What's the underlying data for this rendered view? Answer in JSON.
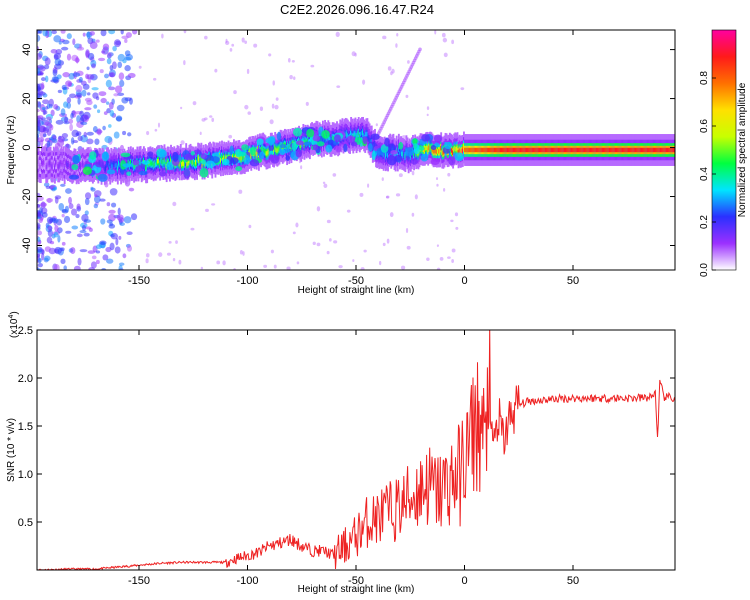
{
  "title": "C2E2.2026.096.16.47.R24",
  "colorbar": {
    "label": "Normalized spectral amplitude",
    "ticks": [
      "0.0",
      "0.2",
      "0.4",
      "0.6",
      "0.8"
    ],
    "colors": [
      "#ffffff",
      "#9b30ff",
      "#2a30ff",
      "#00e5ff",
      "#00ff40",
      "#c8ff00",
      "#ffe000",
      "#ff7000",
      "#ff1a1a",
      "#ff00a0"
    ]
  },
  "line_color": "#ee2222",
  "chart_data": [
    {
      "type": "heatmap",
      "xlabel": "Height of straight line (km)",
      "ylabel": "Frequency (Hz)",
      "xlim": [
        -197,
        97
      ],
      "ylim": [
        -50,
        48
      ],
      "xticks": [
        -150,
        -100,
        -50,
        0,
        50
      ],
      "yticks": [
        -40,
        -20,
        0,
        20,
        40
      ],
      "ridge": {
        "x": [
          -195,
          -170,
          -160,
          -150,
          -140,
          -130,
          -120,
          -110,
          -100,
          -90,
          -80,
          -70,
          -60,
          -50,
          -45,
          -40,
          -30,
          -25,
          -20,
          -10,
          0,
          10,
          20,
          40,
          60,
          80,
          94
        ],
        "freq": [
          -7,
          -7.5,
          -7.5,
          -7,
          -6.5,
          -6,
          -5.5,
          -4.5,
          -3,
          -1,
          1,
          3,
          4,
          5,
          5,
          -2,
          -2,
          -3,
          -1,
          -1,
          -1,
          -1,
          -1,
          -1,
          -1,
          -1,
          -1
        ],
        "amplitude": [
          0.1,
          0.15,
          0.3,
          0.4,
          0.45,
          0.5,
          0.55,
          0.55,
          0.55,
          0.5,
          0.45,
          0.4,
          0.35,
          0.35,
          0.3,
          0.3,
          0.3,
          0.3,
          0.55,
          0.7,
          0.8,
          0.85,
          0.9,
          0.9,
          0.9,
          0.9,
          0.9
        ]
      }
    },
    {
      "type": "line",
      "xlabel": "Height of straight line (km)",
      "ylabel": "SNR (10 * v/v)",
      "scale_label": "(x10",
      "scale_exp": "4",
      "xlim": [
        -197,
        97
      ],
      "ylim": [
        0,
        2.5
      ],
      "xticks": [
        -150,
        -100,
        -50,
        0,
        50
      ],
      "yticks": [
        0.5,
        1.0,
        1.5,
        2.0,
        2.5
      ],
      "yticklabels": [
        "0.5",
        "1.0",
        "1.5",
        "2.0",
        "2.5"
      ],
      "series": [
        {
          "x": [
            -197,
            -180,
            -170,
            -160,
            -150,
            -140,
            -130,
            -120,
            -110,
            -105,
            -100,
            -95,
            -90,
            -85,
            -80,
            -75,
            -70,
            -65,
            -60,
            -55,
            -50,
            -45,
            -40,
            -35,
            -30,
            -25,
            -20,
            -18,
            -15,
            -12,
            -10,
            -8,
            -5,
            -2,
            0,
            3,
            5,
            8,
            10,
            11,
            12,
            14,
            16,
            18,
            20,
            22,
            25,
            30,
            40,
            50,
            60,
            70,
            80,
            86,
            88,
            89,
            90,
            92,
            94,
            97
          ],
          "y": [
            0.0,
            0.01,
            0.01,
            0.03,
            0.05,
            0.07,
            0.08,
            0.08,
            0.08,
            0.12,
            0.15,
            0.18,
            0.25,
            0.28,
            0.32,
            0.25,
            0.2,
            0.2,
            0.15,
            0.25,
            0.35,
            0.5,
            0.55,
            0.6,
            0.65,
            0.75,
            0.85,
            0.9,
            0.85,
            0.8,
            0.85,
            0.9,
            0.95,
            1.0,
            1.15,
            1.35,
            1.55,
            1.45,
            1.2,
            2.5,
            1.3,
            1.4,
            1.55,
            1.35,
            1.5,
            1.65,
            1.72,
            1.76,
            1.78,
            1.79,
            1.79,
            1.79,
            1.79,
            1.8,
            1.85,
            1.33,
            1.95,
            1.8,
            1.8,
            1.78
          ]
        }
      ]
    }
  ]
}
